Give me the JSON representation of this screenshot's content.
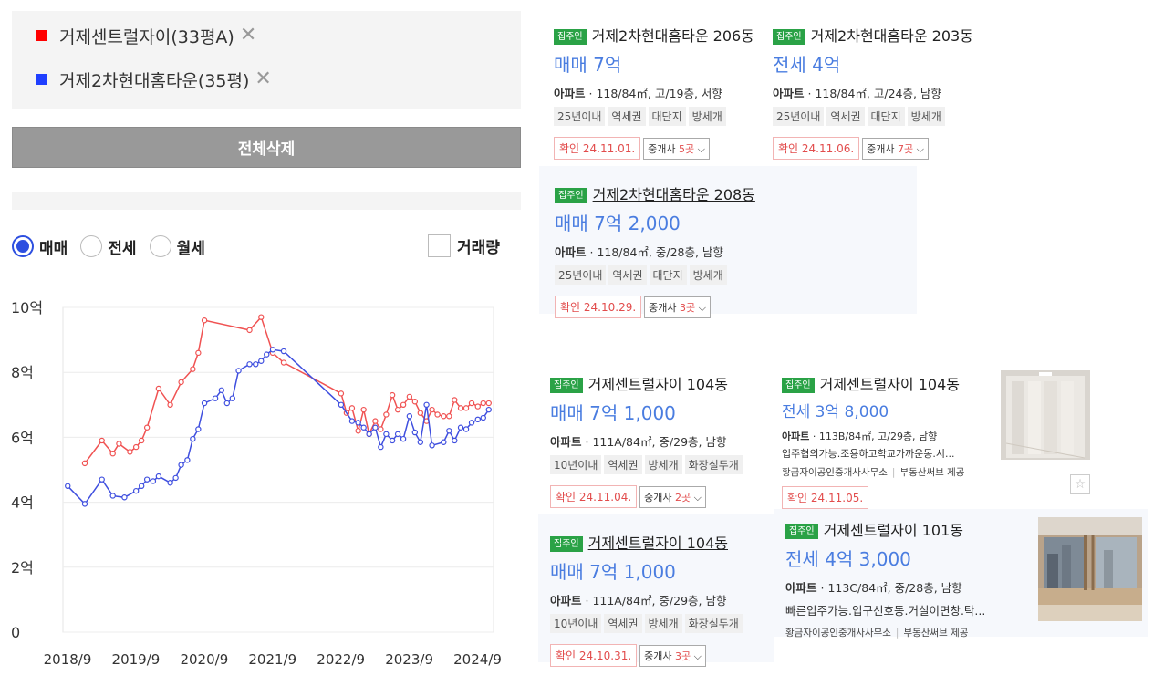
{
  "compare": {
    "items": [
      {
        "label": "거제센트럴자이(33평A)",
        "color": "#ff0000",
        "remove": "✕"
      },
      {
        "label": "거제2차현대홈타운(35평)",
        "color": "#1f3fff",
        "remove": "✕"
      }
    ],
    "delete_all": "전체삭제"
  },
  "filters": {
    "trade_types": [
      {
        "label": "매매",
        "selected": true
      },
      {
        "label": "전세",
        "selected": false
      },
      {
        "label": "월세",
        "selected": false
      }
    ],
    "volume_label": "거래량",
    "volume_checked": false
  },
  "chart_data": {
    "type": "line",
    "title": "",
    "xlabel": "",
    "ylabel": "",
    "y_ticks": [
      "0",
      "2억",
      "4억",
      "6억",
      "8억",
      "10억"
    ],
    "ylim": [
      0,
      10
    ],
    "x_ticks": [
      "2018/9",
      "2019/9",
      "2020/9",
      "2021/9",
      "2022/9",
      "2023/9",
      "2024/9"
    ],
    "x_tick_values": [
      2018.667,
      2019.667,
      2020.667,
      2021.667,
      2022.667,
      2023.667,
      2024.667
    ],
    "xlim": [
      2018.6,
      2024.9
    ],
    "grid": true,
    "series": [
      {
        "color": "#f05252",
        "points": [
          [
            2018.92,
            5.2
          ],
          [
            2019.17,
            5.9
          ],
          [
            2019.33,
            5.5
          ],
          [
            2019.42,
            5.8
          ],
          [
            2019.58,
            5.55
          ],
          [
            2019.67,
            5.7
          ],
          [
            2019.75,
            5.9
          ],
          [
            2019.83,
            6.3
          ],
          [
            2020.0,
            7.5
          ],
          [
            2020.17,
            7.0
          ],
          [
            2020.33,
            7.7
          ],
          [
            2020.5,
            8.1
          ],
          [
            2020.58,
            8.6
          ],
          [
            2020.67,
            9.6
          ],
          [
            2021.33,
            9.3
          ],
          [
            2021.5,
            9.7
          ],
          [
            2021.67,
            8.6
          ],
          [
            2021.83,
            8.3
          ],
          [
            2022.67,
            7.35
          ],
          [
            2022.75,
            6.75
          ],
          [
            2022.83,
            6.9
          ],
          [
            2022.92,
            6.2
          ],
          [
            2023.0,
            6.85
          ],
          [
            2023.08,
            6.1
          ],
          [
            2023.17,
            6.5
          ],
          [
            2023.25,
            6.25
          ],
          [
            2023.33,
            6.7
          ],
          [
            2023.42,
            7.3
          ],
          [
            2023.5,
            6.85
          ],
          [
            2023.58,
            7.0
          ],
          [
            2023.67,
            7.25
          ],
          [
            2023.75,
            7.1
          ],
          [
            2023.83,
            6.75
          ],
          [
            2023.92,
            6.5
          ],
          [
            2024.0,
            6.85
          ],
          [
            2024.08,
            6.7
          ],
          [
            2024.17,
            6.65
          ],
          [
            2024.25,
            6.65
          ],
          [
            2024.33,
            7.15
          ],
          [
            2024.42,
            6.9
          ],
          [
            2024.5,
            6.9
          ],
          [
            2024.58,
            7.05
          ],
          [
            2024.67,
            6.95
          ],
          [
            2024.75,
            7.05
          ],
          [
            2024.83,
            7.05
          ]
        ]
      },
      {
        "color": "#3f4fdf",
        "points": [
          [
            2018.67,
            4.5
          ],
          [
            2018.92,
            3.95
          ],
          [
            2019.17,
            4.7
          ],
          [
            2019.33,
            4.2
          ],
          [
            2019.5,
            4.15
          ],
          [
            2019.67,
            4.35
          ],
          [
            2019.75,
            4.5
          ],
          [
            2019.83,
            4.7
          ],
          [
            2019.92,
            4.65
          ],
          [
            2020.0,
            4.8
          ],
          [
            2020.17,
            4.6
          ],
          [
            2020.25,
            4.75
          ],
          [
            2020.33,
            5.15
          ],
          [
            2020.42,
            5.3
          ],
          [
            2020.5,
            5.95
          ],
          [
            2020.58,
            6.25
          ],
          [
            2020.67,
            7.05
          ],
          [
            2020.83,
            7.2
          ],
          [
            2020.92,
            7.45
          ],
          [
            2021.0,
            7.05
          ],
          [
            2021.08,
            7.2
          ],
          [
            2021.17,
            8.05
          ],
          [
            2021.33,
            8.25
          ],
          [
            2021.42,
            8.25
          ],
          [
            2021.5,
            8.35
          ],
          [
            2021.58,
            8.55
          ],
          [
            2021.67,
            8.7
          ],
          [
            2021.83,
            8.65
          ],
          [
            2022.67,
            7.0
          ],
          [
            2022.83,
            6.5
          ],
          [
            2022.92,
            6.45
          ],
          [
            2023.0,
            6.3
          ],
          [
            2023.08,
            6.1
          ],
          [
            2023.17,
            6.3
          ],
          [
            2023.25,
            5.7
          ],
          [
            2023.33,
            6.1
          ],
          [
            2023.42,
            5.9
          ],
          [
            2023.5,
            6.1
          ],
          [
            2023.58,
            5.95
          ],
          [
            2023.67,
            6.65
          ],
          [
            2023.75,
            6.15
          ],
          [
            2023.83,
            5.85
          ],
          [
            2023.92,
            7.0
          ],
          [
            2024.0,
            5.75
          ],
          [
            2024.17,
            5.85
          ],
          [
            2024.25,
            6.2
          ],
          [
            2024.33,
            5.9
          ],
          [
            2024.42,
            6.3
          ],
          [
            2024.5,
            6.25
          ],
          [
            2024.58,
            6.45
          ],
          [
            2024.67,
            6.55
          ],
          [
            2024.75,
            6.6
          ],
          [
            2024.83,
            6.85
          ]
        ]
      }
    ]
  },
  "listings": [
    {
      "badge": "집주인",
      "title": "거제2차현대홈타운 206동",
      "price": "매매 7억",
      "type": "아파트",
      "spec": "118/84㎡, 고/19층, 서향",
      "chips": [
        "25년이내",
        "역세권",
        "대단지",
        "방세개"
      ],
      "confirmed": "확인 24.11.01.",
      "brokers_pre": "중개사 ",
      "brokers_n": "5곳",
      "chev": "⌵"
    },
    {
      "badge": "집주인",
      "title": "거제2차현대홈타운 203동",
      "price": "전세 4억",
      "type": "아파트",
      "spec": "118/84㎡, 고/24층, 남향",
      "chips": [
        "25년이내",
        "역세권",
        "대단지",
        "방세개"
      ],
      "confirmed": "확인 24.11.06.",
      "brokers_pre": "중개사 ",
      "brokers_n": "7곳",
      "chev": "⌵"
    },
    {
      "badge": "집주인",
      "title": "거제2차현대홈타운 208동",
      "price": "매매 7억 2,000",
      "type": "아파트",
      "spec": "118/84㎡, 중/28층, 남향",
      "chips": [
        "25년이내",
        "역세권",
        "대단지",
        "방세개"
      ],
      "confirmed": "확인 24.10.29.",
      "brokers_pre": "중개사 ",
      "brokers_n": "3곳",
      "chev": "⌵"
    },
    {
      "badge": "집주인",
      "title": "거제센트럴자이 104동",
      "price": "매매 7억 1,000",
      "type": "아파트",
      "spec": "111A/84㎡, 중/29층, 남향",
      "chips": [
        "10년이내",
        "역세권",
        "방세개",
        "화장실두개"
      ],
      "confirmed": "확인 24.11.04.",
      "brokers_pre": "중개사 ",
      "brokers_n": "2곳",
      "chev": "⌵"
    },
    {
      "badge": "집주인",
      "title": "거제센트럴자이 104동",
      "price": "전세 3억 8,000",
      "type": "아파트",
      "spec": "113B/84㎡, 고/29층, 남향",
      "desc": "입주협의가능.조용하고학교가까운동.시...",
      "agency": "황금자이공인중개사사무소",
      "provider": "부동산써브 제공",
      "confirmed": "확인 24.11.05.",
      "star": "☆"
    },
    {
      "badge": "집주인",
      "title": "거제센트럴자이 104동",
      "price": "매매 7억 1,000",
      "type": "아파트",
      "spec": "111A/84㎡, 중/29층, 남향",
      "chips": [
        "10년이내",
        "역세권",
        "방세개",
        "화장실두개"
      ],
      "confirmed": "확인 24.10.31.",
      "brokers_pre": "중개사 ",
      "brokers_n": "3곳",
      "chev": "⌵"
    },
    {
      "badge": "집주인",
      "title": "거제센트럴자이 101동",
      "price": "전세 4억 3,000",
      "type": "아파트",
      "spec": "113C/84㎡, 중/28층, 남향",
      "desc": "빠른입주가능.입구선호동.거실이면창.탁...",
      "agency": "황금자이공인중개사사무소",
      "provider": "부동산써브 제공"
    }
  ]
}
